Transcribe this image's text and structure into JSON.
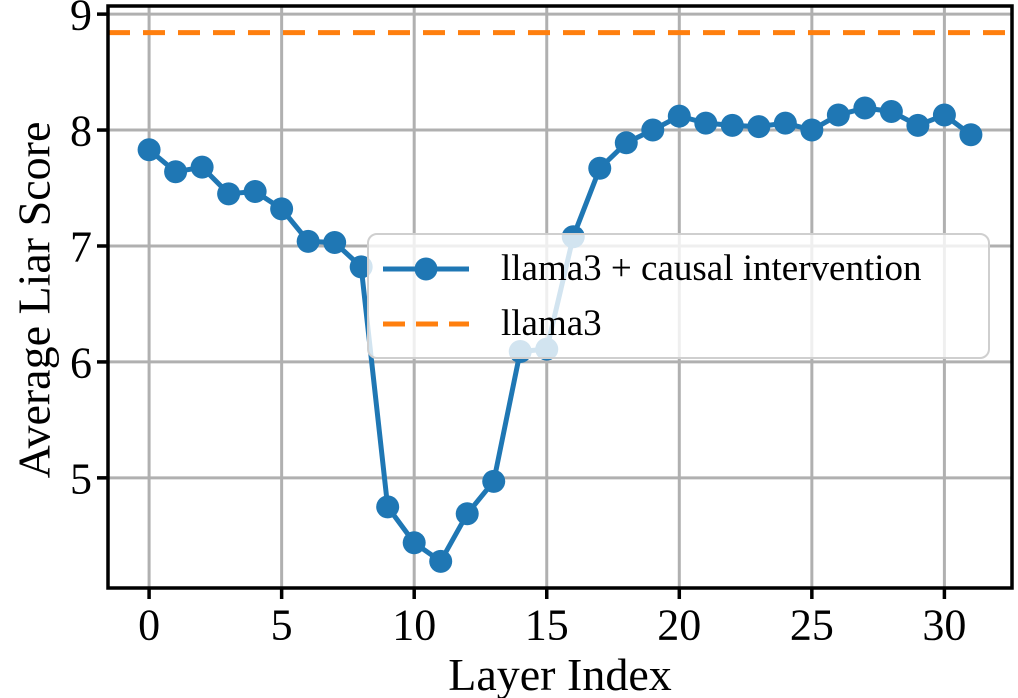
{
  "figure": {
    "background_color": "#ffffff"
  },
  "chart_data": {
    "type": "line",
    "title": "",
    "xlabel": "Layer Index",
    "ylabel": "Average Liar Score",
    "x": [
      0,
      1,
      2,
      3,
      4,
      5,
      6,
      7,
      8,
      9,
      10,
      11,
      12,
      13,
      14,
      15,
      16,
      17,
      18,
      19,
      20,
      21,
      22,
      23,
      24,
      25,
      26,
      27,
      28,
      29,
      30,
      31
    ],
    "series": [
      {
        "name": "llama3 + causal intervention",
        "color": "#1f77b4",
        "line_style": "solid",
        "marker": "circle",
        "values": [
          7.83,
          7.64,
          7.68,
          7.45,
          7.47,
          7.32,
          7.04,
          7.03,
          6.82,
          4.75,
          4.44,
          4.28,
          4.69,
          4.97,
          6.09,
          6.11,
          7.08,
          7.67,
          7.89,
          8.0,
          8.12,
          8.06,
          8.04,
          8.03,
          8.06,
          8.0,
          8.13,
          8.19,
          8.16,
          8.04,
          8.13,
          7.96
        ]
      },
      {
        "name": "llama3",
        "color": "#ff7f0e",
        "line_style": "dashed",
        "marker": "none",
        "baseline_value": 8.84
      }
    ],
    "xlim": [
      -1.55,
      32.55
    ],
    "ylim": [
      4.05,
      9.07
    ],
    "xticks": [
      0,
      5,
      10,
      15,
      20,
      25,
      30
    ],
    "yticks": [
      5,
      6,
      7,
      8,
      9
    ],
    "grid": true,
    "grid_color": "#b0b0b0",
    "axis_color": "#000000",
    "legend": {
      "position": "center",
      "entries": [
        "llama3 + causal intervention",
        "llama3"
      ]
    }
  }
}
